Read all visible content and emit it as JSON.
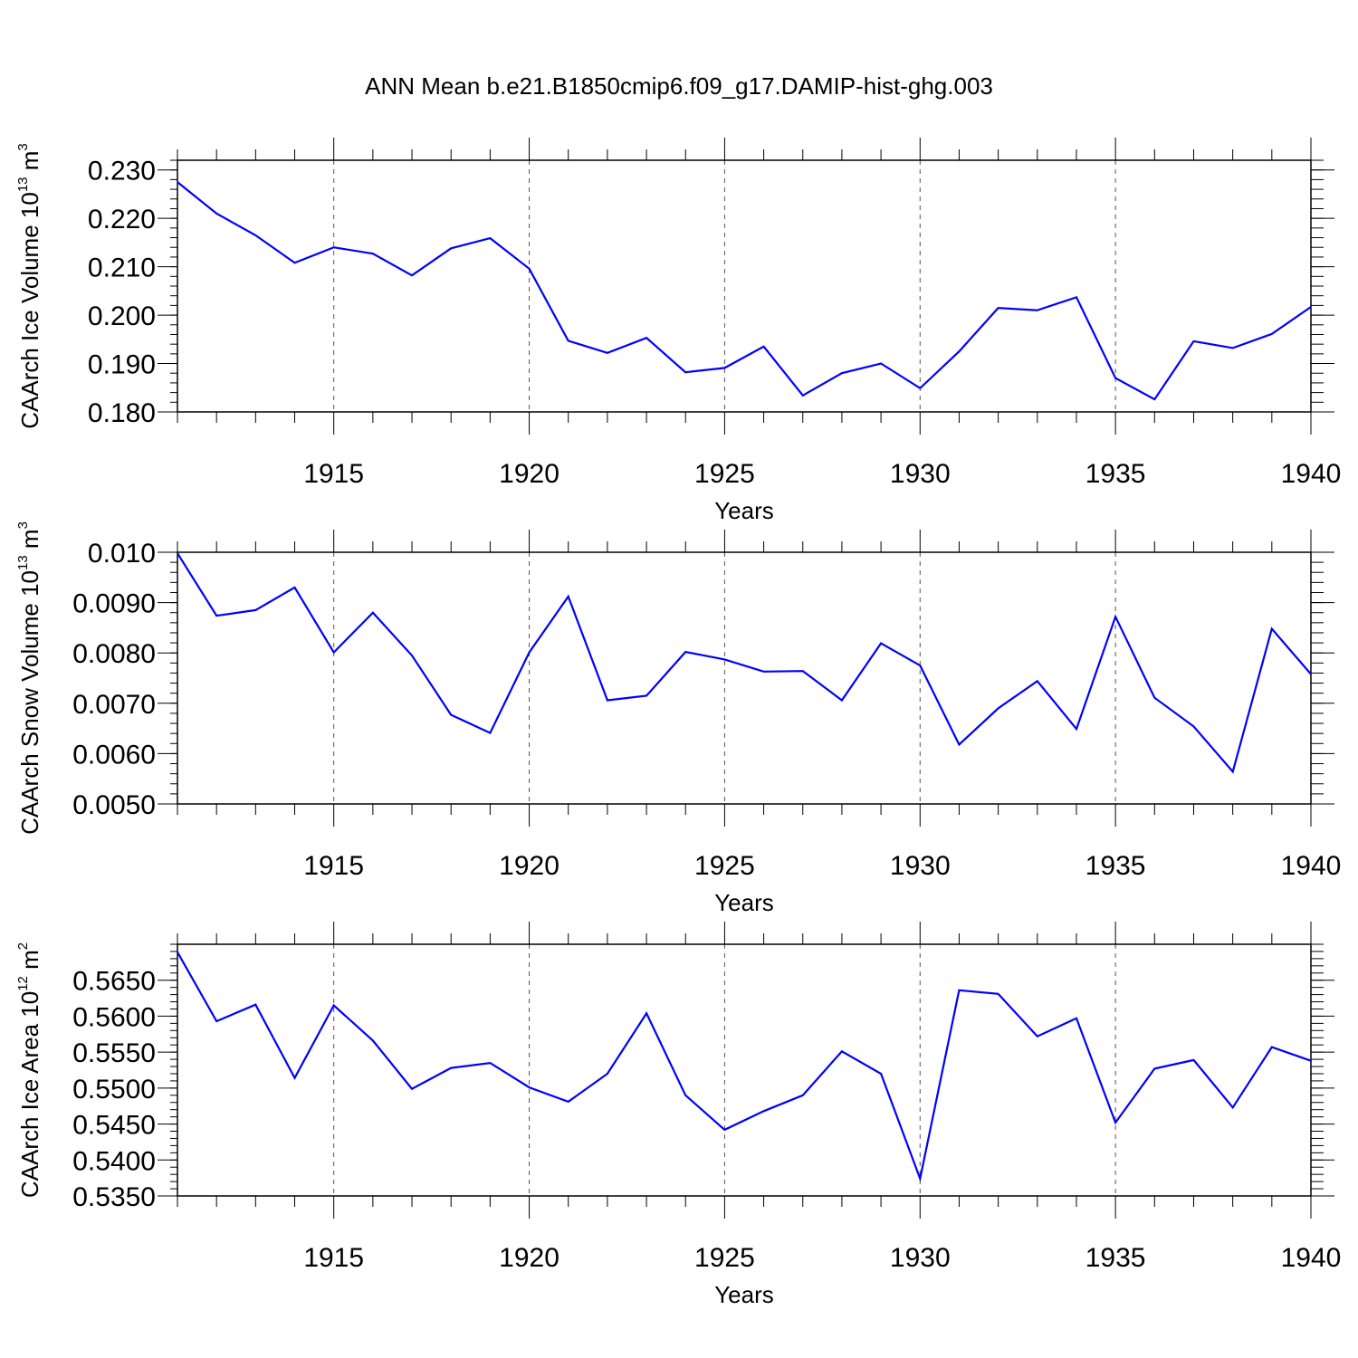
{
  "figure": {
    "title": "ANN Mean b.e21.B1850cmip6.f09_g17.DAMIP-hist-ghg.003"
  },
  "chart_data": [
    {
      "type": "line",
      "ylabel": {
        "text": "CAArch Ice Volume 10",
        "exp": "13",
        "unit": "m",
        "unit_exp": "3"
      },
      "xlabel": "Years",
      "xlim": [
        1911,
        1940
      ],
      "ylim": [
        0.18,
        0.232
      ],
      "x_ticks": [
        1915,
        1920,
        1925,
        1930,
        1935,
        1940
      ],
      "x_tick_labels": [
        "1915",
        "1920",
        "1925",
        "1930",
        "1935",
        "1940"
      ],
      "y_ticks": [
        0.18,
        0.19,
        0.2,
        0.21,
        0.22,
        0.23
      ],
      "y_tick_labels": [
        "0.180",
        "0.190",
        "0.200",
        "0.210",
        "0.220",
        "0.230"
      ],
      "y_minor_step": 0.002,
      "grid": "vertical dashed at major x ticks",
      "line_color": "#0000ff",
      "series": [
        {
          "x": [
            1911,
            1912,
            1913,
            1914,
            1915,
            1916,
            1917,
            1918,
            1919,
            1920,
            1921,
            1922,
            1923,
            1924,
            1925,
            1926,
            1927,
            1928,
            1929,
            1930,
            1931,
            1932,
            1933,
            1934,
            1935,
            1936,
            1937,
            1938,
            1939,
            1940
          ],
          "values": [
            0.2275,
            0.221,
            0.2165,
            0.2108,
            0.214,
            0.2127,
            0.2082,
            0.2138,
            0.2159,
            0.2096,
            0.1947,
            0.1922,
            0.1953,
            0.1882,
            0.1891,
            0.1935,
            0.1834,
            0.188,
            0.19,
            0.1849,
            0.1925,
            0.2015,
            0.201,
            0.2037,
            0.187,
            0.1826,
            0.1946,
            0.1932,
            0.1961,
            0.2017
          ]
        }
      ]
    },
    {
      "type": "line",
      "ylabel": {
        "text": "CAArch Snow Volume 10",
        "exp": "13",
        "unit": "m",
        "unit_exp": "3"
      },
      "xlabel": "Years",
      "xlim": [
        1911,
        1940
      ],
      "ylim": [
        0.005,
        0.01
      ],
      "x_ticks": [
        1915,
        1920,
        1925,
        1930,
        1935,
        1940
      ],
      "x_tick_labels": [
        "1915",
        "1920",
        "1925",
        "1930",
        "1935",
        "1940"
      ],
      "y_ticks": [
        0.005,
        0.006,
        0.007,
        0.008,
        0.009,
        0.01
      ],
      "y_tick_labels": [
        "0.0050",
        "0.0060",
        "0.0070",
        "0.0080",
        "0.0090",
        "0.010"
      ],
      "y_minor_step": 0.0002,
      "grid": "vertical dashed at major x ticks",
      "line_color": "#0000ff",
      "series": [
        {
          "x": [
            1911,
            1912,
            1913,
            1914,
            1915,
            1916,
            1917,
            1918,
            1919,
            1920,
            1921,
            1922,
            1923,
            1924,
            1925,
            1926,
            1927,
            1928,
            1929,
            1930,
            1931,
            1932,
            1933,
            1934,
            1935,
            1936,
            1937,
            1938,
            1939,
            1940
          ],
          "values": [
            0.00998,
            0.00874,
            0.00885,
            0.0093,
            0.00801,
            0.0088,
            0.00795,
            0.00677,
            0.00641,
            0.00801,
            0.00912,
            0.00706,
            0.00715,
            0.00802,
            0.00787,
            0.00763,
            0.00764,
            0.00706,
            0.00819,
            0.00775,
            0.00618,
            0.0069,
            0.00744,
            0.00649,
            0.00872,
            0.00711,
            0.00654,
            0.00564,
            0.00848,
            0.00758
          ]
        }
      ]
    },
    {
      "type": "line",
      "ylabel": {
        "text": "CAArch Ice Area 10",
        "exp": "12",
        "unit": "m",
        "unit_exp": "2"
      },
      "xlabel": "Years",
      "xlim": [
        1911,
        1940
      ],
      "ylim": [
        0.535,
        0.57
      ],
      "x_ticks": [
        1915,
        1920,
        1925,
        1930,
        1935,
        1940
      ],
      "x_tick_labels": [
        "1915",
        "1920",
        "1925",
        "1930",
        "1935",
        "1940"
      ],
      "y_ticks": [
        0.535,
        0.54,
        0.545,
        0.55,
        0.555,
        0.56,
        0.565
      ],
      "y_tick_labels": [
        "0.5350",
        "0.5400",
        "0.5450",
        "0.5500",
        "0.5550",
        "0.5600",
        "0.5650"
      ],
      "y_minor_step": 0.001,
      "grid": "vertical dashed at major x ticks",
      "line_color": "#0000ff",
      "series": [
        {
          "x": [
            1911,
            1912,
            1913,
            1914,
            1915,
            1916,
            1917,
            1918,
            1919,
            1920,
            1921,
            1922,
            1923,
            1924,
            1925,
            1926,
            1927,
            1928,
            1929,
            1930,
            1931,
            1932,
            1933,
            1934,
            1935,
            1936,
            1937,
            1938,
            1939,
            1940
          ],
          "values": [
            0.5689,
            0.5593,
            0.5616,
            0.5514,
            0.5615,
            0.5566,
            0.5499,
            0.5528,
            0.5535,
            0.5501,
            0.5481,
            0.552,
            0.5604,
            0.549,
            0.5442,
            0.5468,
            0.549,
            0.5551,
            0.552,
            0.5374,
            0.5636,
            0.5631,
            0.5572,
            0.5597,
            0.5452,
            0.5527,
            0.5539,
            0.5473,
            0.5557,
            0.5538
          ]
        }
      ]
    }
  ]
}
